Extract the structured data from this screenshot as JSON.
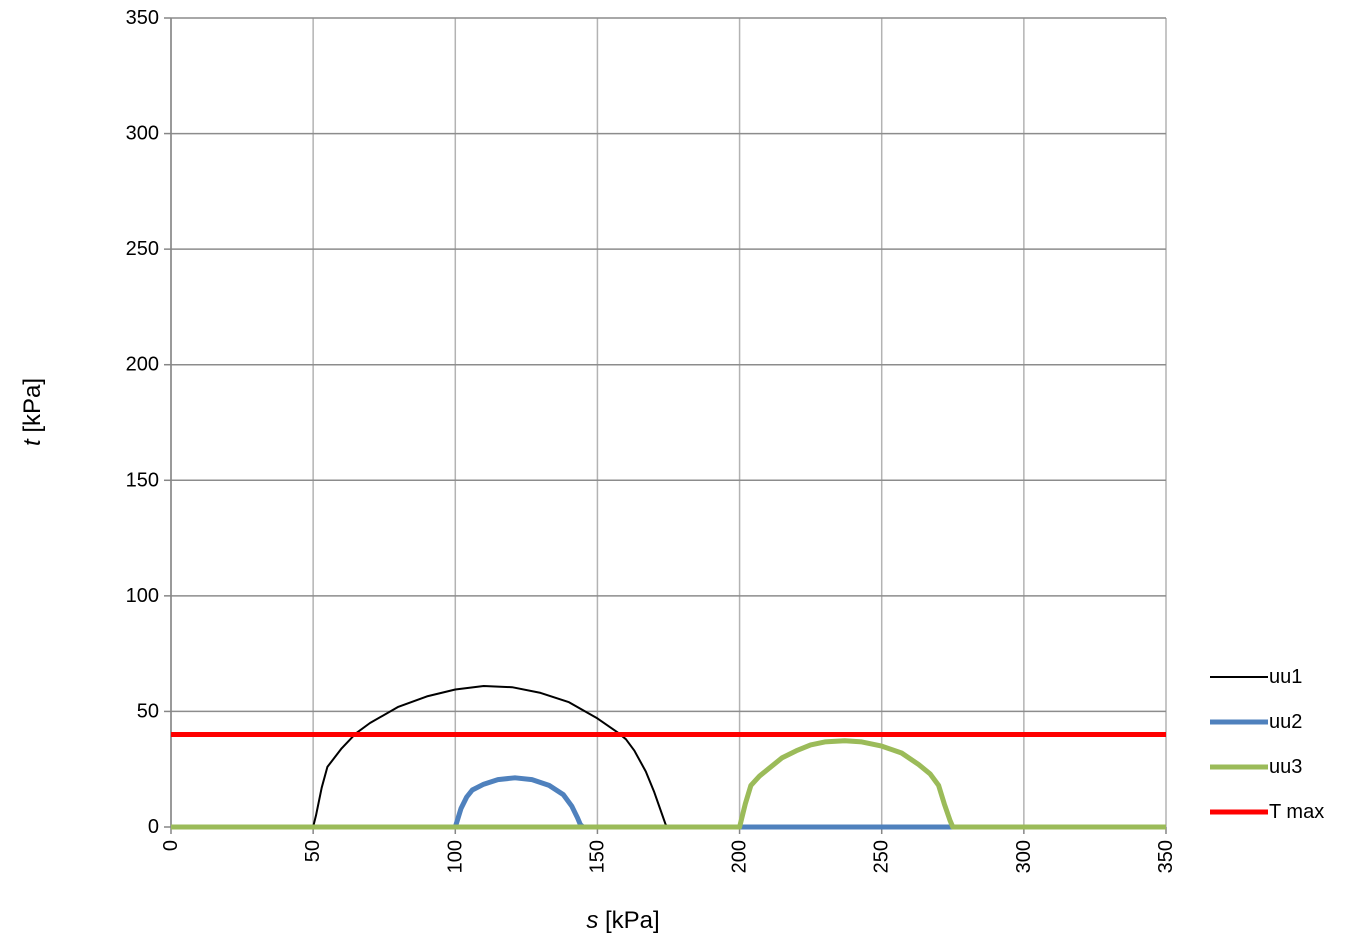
{
  "chart_data": {
    "type": "line",
    "xlabel": {
      "var": "s",
      "unit": " [kPa]"
    },
    "ylabel": {
      "var": "t",
      "unit": " [kPa]"
    },
    "xlim": [
      0,
      350
    ],
    "ylim": [
      0,
      350
    ],
    "x_ticks": [
      0,
      50,
      100,
      150,
      200,
      250,
      300,
      350
    ],
    "y_ticks": [
      0,
      50,
      100,
      150,
      200,
      250,
      300,
      350
    ],
    "grid": true,
    "legend_position": "right-bottom",
    "series": [
      {
        "name": "uu1",
        "color": "#000000",
        "points": [
          [
            0,
            0
          ],
          [
            50,
            0
          ],
          [
            51,
            5
          ],
          [
            53,
            17
          ],
          [
            55,
            26
          ],
          [
            60,
            34
          ],
          [
            65,
            40.5
          ],
          [
            70,
            45
          ],
          [
            80,
            52
          ],
          [
            90,
            56.5
          ],
          [
            100,
            59.5
          ],
          [
            110,
            61
          ],
          [
            120,
            60.5
          ],
          [
            130,
            58
          ],
          [
            140,
            54
          ],
          [
            150,
            47
          ],
          [
            157,
            41
          ],
          [
            160,
            38
          ],
          [
            163,
            33
          ],
          [
            167,
            24
          ],
          [
            170,
            15
          ],
          [
            172,
            8
          ],
          [
            174,
            1
          ],
          [
            175,
            0
          ],
          [
            200,
            0
          ]
        ]
      },
      {
        "name": "uu2",
        "color": "#4f81bd",
        "points": [
          [
            0,
            0
          ],
          [
            100,
            0
          ],
          [
            102,
            8
          ],
          [
            104,
            13
          ],
          [
            106,
            16
          ],
          [
            110,
            18.5
          ],
          [
            115,
            20.5
          ],
          [
            121,
            21.3
          ],
          [
            127,
            20.5
          ],
          [
            133,
            18
          ],
          [
            138,
            14
          ],
          [
            141,
            9
          ],
          [
            143,
            4
          ],
          [
            144,
            1
          ],
          [
            145,
            0
          ],
          [
            350,
            0
          ]
        ]
      },
      {
        "name": "uu3",
        "color": "#9bbb59",
        "points": [
          [
            0,
            0
          ],
          [
            200,
            0
          ],
          [
            202,
            10
          ],
          [
            204,
            18
          ],
          [
            207,
            22
          ],
          [
            210,
            25
          ],
          [
            215,
            30
          ],
          [
            220,
            33
          ],
          [
            225,
            35.5
          ],
          [
            230,
            36.8
          ],
          [
            237,
            37.3
          ],
          [
            243,
            36.8
          ],
          [
            250,
            35
          ],
          [
            257,
            32
          ],
          [
            263,
            27
          ],
          [
            267,
            23
          ],
          [
            270,
            18
          ],
          [
            272,
            10
          ],
          [
            274,
            3
          ],
          [
            275,
            0
          ],
          [
            350,
            0
          ]
        ]
      },
      {
        "name": "T max",
        "color": "#ff0000",
        "points": [
          [
            0,
            40
          ],
          [
            350,
            40
          ]
        ]
      }
    ]
  }
}
